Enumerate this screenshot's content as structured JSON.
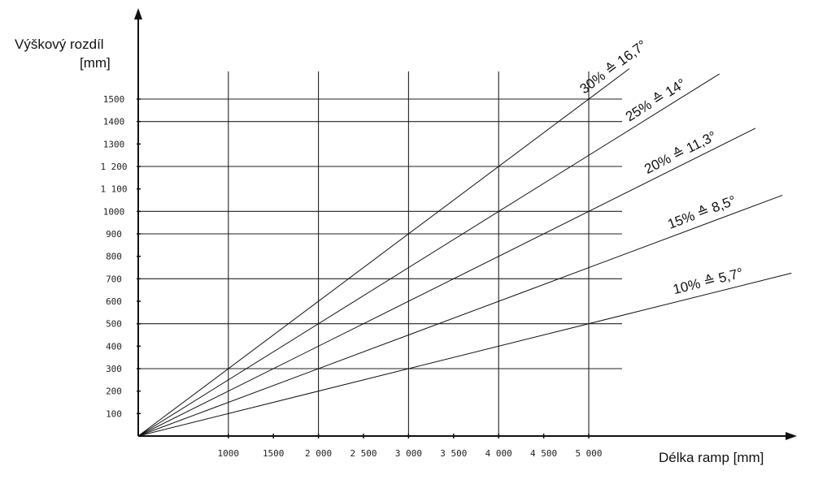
{
  "chart_data": {
    "type": "line",
    "ylabel_line1": "Výškový rozdíl",
    "ylabel_line2": "[mm]",
    "xlabel": "Délka ramp [mm]",
    "xlim": [
      0,
      5000
    ],
    "ylim": [
      0,
      1500
    ],
    "x_ticks": [
      {
        "value": 1000,
        "label": "1000"
      },
      {
        "value": 1500,
        "label": "1500"
      },
      {
        "value": 2000,
        "label": "2 000"
      },
      {
        "value": 2500,
        "label": "2 500"
      },
      {
        "value": 3000,
        "label": "3 000"
      },
      {
        "value": 3500,
        "label": "3 500"
      },
      {
        "value": 4000,
        "label": "4 000"
      },
      {
        "value": 4500,
        "label": "4 500"
      },
      {
        "value": 5000,
        "label": "5 000"
      }
    ],
    "y_ticks": [
      {
        "value": 100,
        "label": "100"
      },
      {
        "value": 200,
        "label": "200"
      },
      {
        "value": 300,
        "label": "300"
      },
      {
        "value": 400,
        "label": "400"
      },
      {
        "value": 500,
        "label": "500"
      },
      {
        "value": 600,
        "label": "600"
      },
      {
        "value": 700,
        "label": "700"
      },
      {
        "value": 800,
        "label": "800"
      },
      {
        "value": 900,
        "label": "900"
      },
      {
        "value": 1000,
        "label": "1000"
      },
      {
        "value": 1100,
        "label": "1 100"
      },
      {
        "value": 1200,
        "label": "1 200"
      },
      {
        "value": 1300,
        "label": "1300"
      },
      {
        "value": 1400,
        "label": "1400"
      },
      {
        "value": 1500,
        "label": "1500"
      }
    ],
    "grid_x": [
      1000,
      2000,
      3000,
      4000,
      5000
    ],
    "grid_y": [
      300,
      500,
      700,
      900,
      1000,
      1200,
      1400,
      1500
    ],
    "series": [
      {
        "name": "30% ≙ 16,7°",
        "slope": 0.3,
        "x": [
          0,
          5450
        ],
        "y": [
          0,
          1635
        ]
      },
      {
        "name": "25% ≙ 14°",
        "slope": 0.25,
        "x": [
          0,
          6450
        ],
        "y": [
          0,
          1612
        ]
      },
      {
        "name": "20% ≙ 11,3°",
        "slope": 0.2,
        "x": [
          0,
          6850
        ],
        "y": [
          0,
          1370
        ]
      },
      {
        "name": "15% ≙ 8,5°",
        "slope": 0.15,
        "x": [
          0,
          7150
        ],
        "y": [
          0,
          1072
        ]
      },
      {
        "name": "10% ≙ 5,7°",
        "slope": 0.1,
        "x": [
          0,
          7250
        ],
        "y": [
          0,
          725
        ]
      }
    ]
  }
}
